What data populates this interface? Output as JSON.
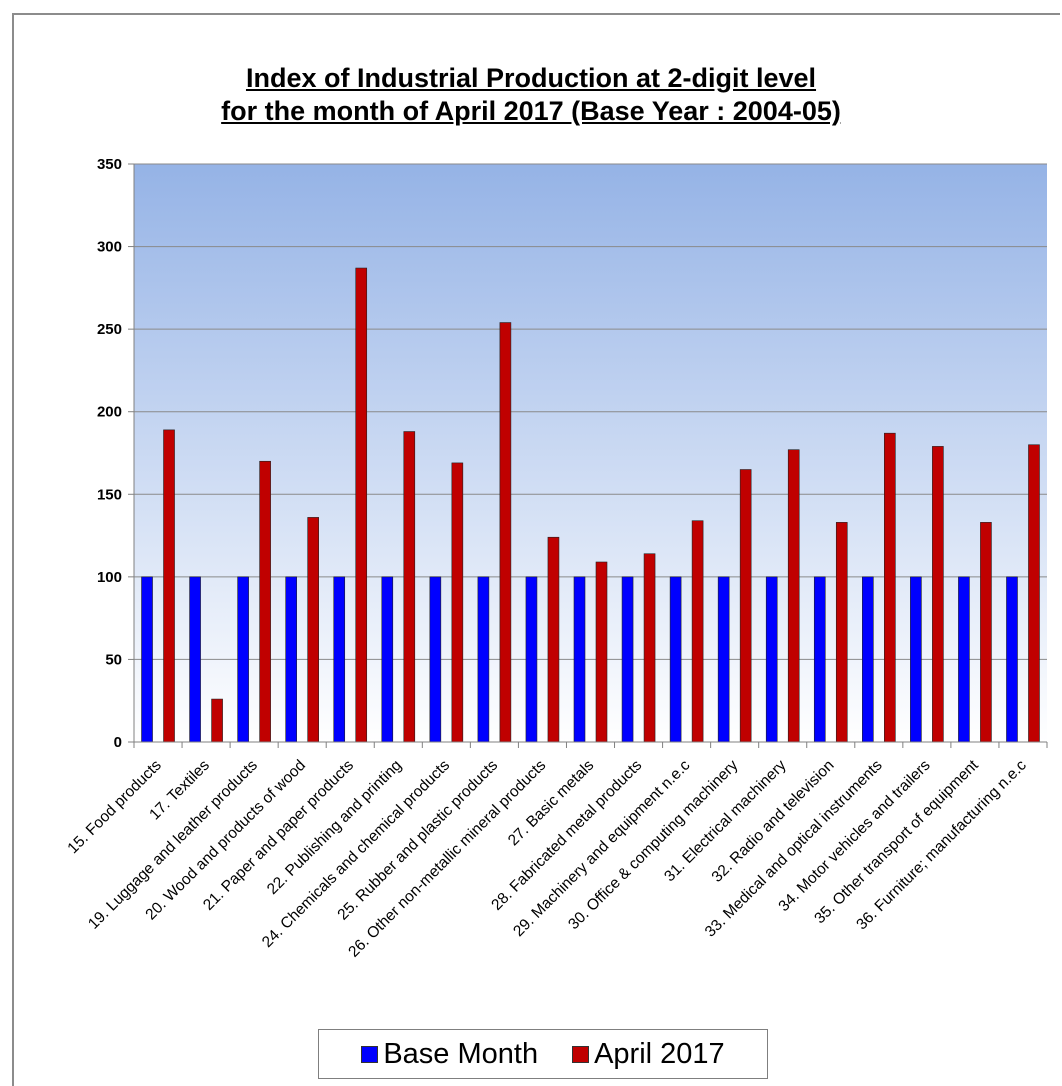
{
  "chart_data": {
    "type": "bar",
    "title": "Index of Industrial Production at 2-digit level for the month of April 2017 (Base Year : 2004-05)",
    "title_lines": [
      "Index of Industrial Production at 2-digit level",
      "for the month of April 2017 (Base Year : 2004-05)"
    ],
    "xlabel": "",
    "ylabel": "",
    "ylim": [
      0,
      350
    ],
    "yticks": [
      0,
      50,
      100,
      150,
      200,
      250,
      300,
      350
    ],
    "grid": true,
    "legend_position": "bottom",
    "categories": [
      "15. Food products",
      "17. Textiles",
      "19. Luggage and leather products",
      "20. Wood and products of wood",
      "21. Paper and paper products",
      "22. Publishing and printing",
      "24. Chemicals and chemical products",
      "25. Rubber and plastic products",
      "26. Other non-metallic mineral products",
      "27. Basic metals",
      "28. Fabricated metal products",
      "29. Machinery and equipment n.e.c",
      "30. Office & computing machinery",
      "31. Electrical machinery",
      "32. Radio and television",
      "33. Medical and optical instruments",
      "34. Motor vehicles and trailers",
      "35. Other transport of equipment",
      "36. Furniture; manufacturing n.e.c"
    ],
    "series": [
      {
        "name": "Base Month",
        "color": "#0000ff",
        "values": [
          100,
          100,
          100,
          100,
          100,
          100,
          100,
          100,
          100,
          100,
          100,
          100,
          100,
          100,
          100,
          100,
          100,
          100,
          100
        ]
      },
      {
        "name": "April 2017",
        "color": "#c00000",
        "values": [
          189,
          26,
          170,
          136,
          287,
          188,
          169,
          254,
          124,
          109,
          114,
          134,
          165,
          177,
          133,
          187,
          179,
          133,
          180
        ]
      }
    ]
  }
}
